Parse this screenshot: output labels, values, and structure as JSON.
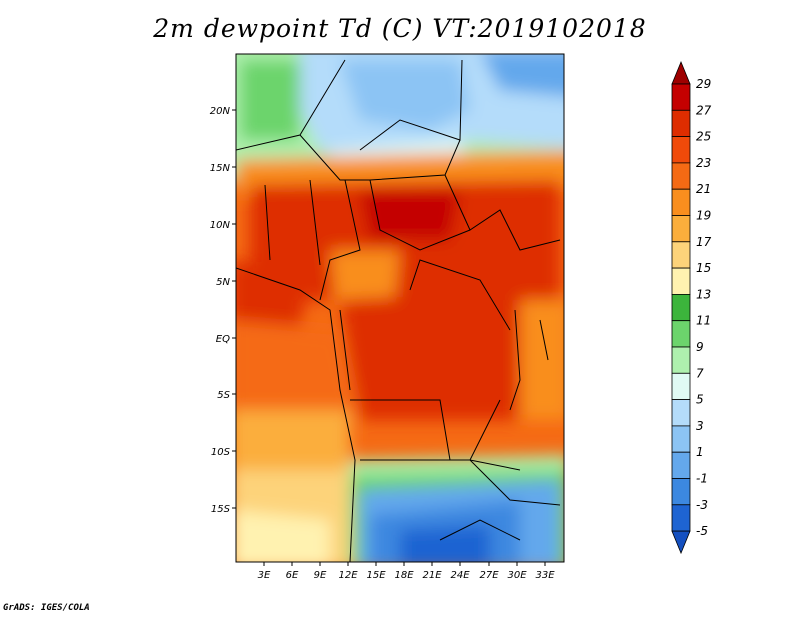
{
  "title": "2m dewpoint Td (C) VT:2019102018",
  "credit": "GrADS: IGES/COLA",
  "axes": {
    "y_labels": [
      "20N",
      "15N",
      "10N",
      "5N",
      "EQ",
      "5S",
      "10S",
      "15S"
    ],
    "x_labels": [
      "3E",
      "6E",
      "9E",
      "12E",
      "15E",
      "18E",
      "21E",
      "24E",
      "27E",
      "30E",
      "33E"
    ]
  },
  "colorbar": {
    "labels": [
      "29",
      "27",
      "25",
      "23",
      "21",
      "19",
      "17",
      "15",
      "13",
      "11",
      "9",
      "7",
      "5",
      "3",
      "1",
      "-1",
      "-3",
      "-5"
    ],
    "colors": [
      "#9e0000",
      "#c40000",
      "#de2d00",
      "#f04a0a",
      "#f56a14",
      "#f98e1e",
      "#fbae3c",
      "#fdd37a",
      "#fff2b0",
      "#3cb43c",
      "#6cd46c",
      "#aef0ae",
      "#e0faf4",
      "#b4dcfa",
      "#8cc4f4",
      "#64a8ec",
      "#3c88e0",
      "#1e64d2",
      "#1450c0"
    ]
  }
}
